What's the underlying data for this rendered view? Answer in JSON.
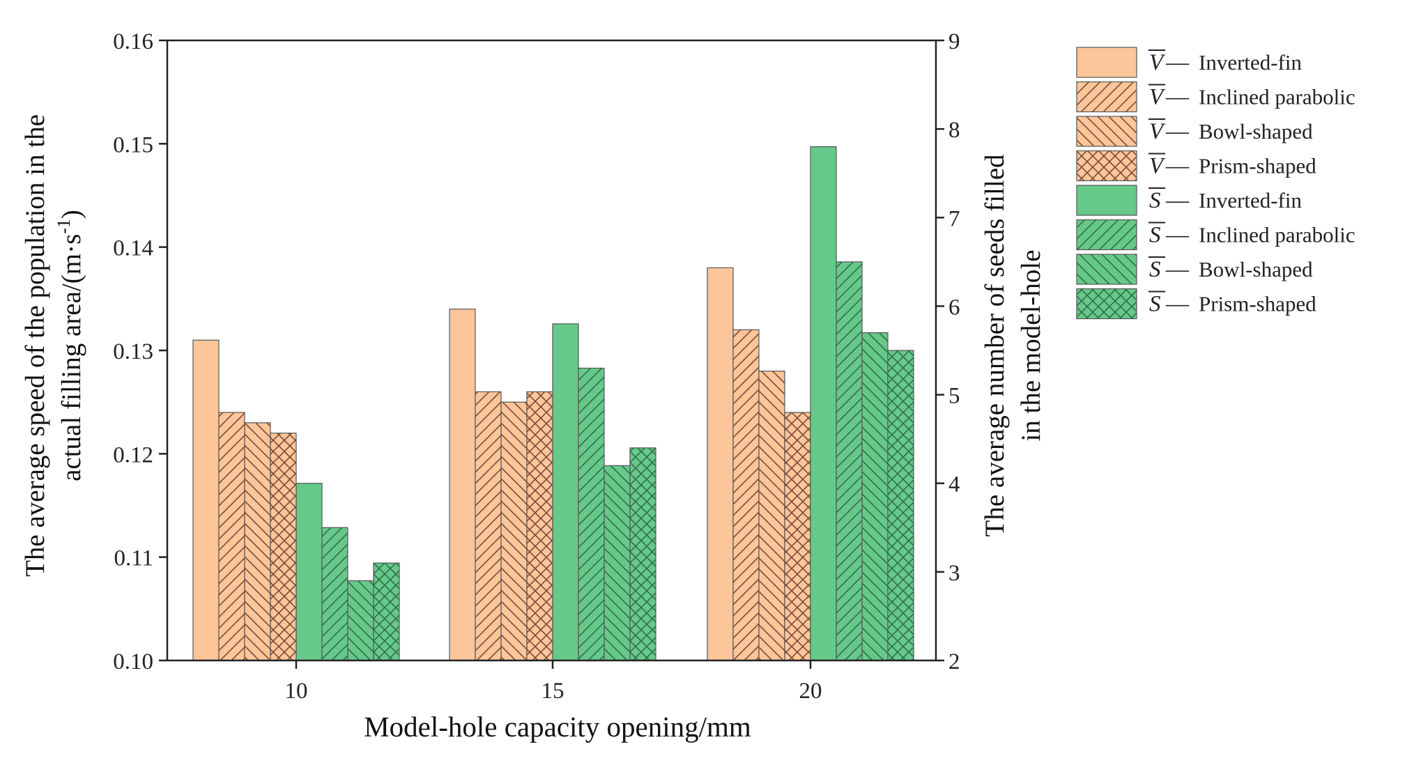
{
  "chart_data": {
    "type": "bar",
    "title": "",
    "xlabel": "Model-hole capacity opening/mm",
    "ylabel_left": {
      "line1": "The average speed of the population in the",
      "line2_prefix": "actual filling area/(m·s",
      "line2_sup": "-1",
      "line2_suffix": ")"
    },
    "ylabel_right": {
      "line1": "The average number of seeds filled",
      "line2": "in the model-hole"
    },
    "categories": [
      "10",
      "15",
      "20"
    ],
    "y_left": {
      "min": 0.1,
      "max": 0.16,
      "ticks": [
        "0.10",
        "0.11",
        "0.12",
        "0.13",
        "0.14",
        "0.15",
        "0.16"
      ]
    },
    "y_right": {
      "min": 2,
      "max": 9,
      "ticks": [
        "2",
        "3",
        "4",
        "5",
        "6",
        "7",
        "8",
        "9"
      ]
    },
    "colors": {
      "V": "#fcc69a",
      "S": "#66c98a",
      "stroke": "#555555",
      "hatch": "#7a4a36",
      "hatch_s": "#2f6f47"
    },
    "series": [
      {
        "name": "Inverted-fin",
        "symbol": "V",
        "axis": "left",
        "pattern": "none",
        "values": [
          0.131,
          0.134,
          0.138
        ]
      },
      {
        "name": "Inclined parabolic",
        "symbol": "V",
        "axis": "left",
        "pattern": "diag-up",
        "values": [
          0.124,
          0.126,
          0.132
        ]
      },
      {
        "name": "Bowl-shaped",
        "symbol": "V",
        "axis": "left",
        "pattern": "diag-down",
        "values": [
          0.123,
          0.125,
          0.128
        ]
      },
      {
        "name": "Prism-shaped",
        "symbol": "V",
        "axis": "left",
        "pattern": "cross",
        "values": [
          0.122,
          0.126,
          0.124
        ]
      },
      {
        "name": "Inverted-fin",
        "symbol": "S",
        "axis": "right",
        "pattern": "none",
        "values": [
          4.0,
          5.8,
          7.8
        ]
      },
      {
        "name": "Inclined parabolic",
        "symbol": "S",
        "axis": "right",
        "pattern": "diag-up",
        "values": [
          3.5,
          5.3,
          6.5
        ]
      },
      {
        "name": "Bowl-shaped",
        "symbol": "S",
        "axis": "right",
        "pattern": "diag-down",
        "values": [
          2.9,
          4.2,
          5.7
        ]
      },
      {
        "name": "Prism-shaped",
        "symbol": "S",
        "axis": "right",
        "pattern": "cross",
        "values": [
          3.1,
          4.4,
          5.5
        ]
      }
    ],
    "legend": {
      "position": "right",
      "dash": "—",
      "entries": [
        {
          "symbol": "V",
          "label": "Inverted-fin"
        },
        {
          "symbol": "V",
          "label": "Inclined parabolic"
        },
        {
          "symbol": "V",
          "label": "Bowl-shaped"
        },
        {
          "symbol": "V",
          "label": "Prism-shaped"
        },
        {
          "symbol": "S",
          "label": "Inverted-fin"
        },
        {
          "symbol": "S",
          "label": "Inclined parabolic"
        },
        {
          "symbol": "S",
          "label": "Bowl-shaped"
        },
        {
          "symbol": "S",
          "label": "Prism-shaped"
        }
      ]
    }
  }
}
